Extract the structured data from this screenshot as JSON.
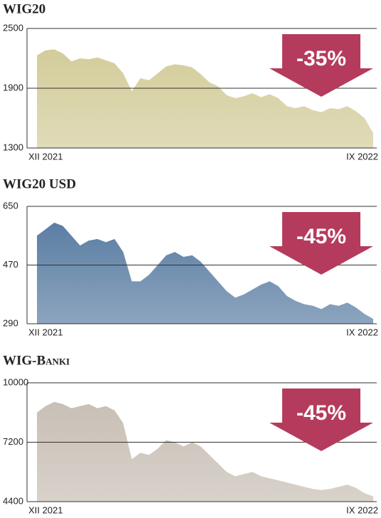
{
  "chart_data": [
    {
      "type": "area",
      "title": "WIG20",
      "annotation": "-35%",
      "color": "#d3cc9a",
      "categories": [
        "XII 2021",
        null,
        null,
        null,
        null,
        null,
        null,
        null,
        null,
        null,
        null,
        null,
        null,
        null,
        null,
        null,
        null,
        null,
        null,
        null,
        null,
        null,
        null,
        null,
        null,
        null,
        null,
        null,
        null,
        null,
        null,
        null,
        null,
        null,
        null,
        null,
        null,
        null,
        null,
        "IX 2022"
      ],
      "values": [
        2230,
        2280,
        2290,
        2250,
        2170,
        2200,
        2190,
        2210,
        2180,
        2150,
        2050,
        1870,
        2000,
        1980,
        2050,
        2120,
        2140,
        2130,
        2110,
        2040,
        1960,
        1920,
        1830,
        1800,
        1820,
        1850,
        1810,
        1840,
        1800,
        1720,
        1700,
        1720,
        1680,
        1660,
        1700,
        1690,
        1720,
        1670,
        1600,
        1450
      ],
      "ylim": [
        1300,
        2500
      ],
      "yticks": [
        1300,
        1900,
        2500
      ]
    },
    {
      "type": "area",
      "title": "WIG20 USD",
      "annotation": "-45%",
      "color": "#5b7ea3",
      "categories": [
        "XII 2021",
        null,
        null,
        null,
        null,
        null,
        null,
        null,
        null,
        null,
        null,
        null,
        null,
        null,
        null,
        null,
        null,
        null,
        null,
        null,
        null,
        null,
        null,
        null,
        null,
        null,
        null,
        null,
        null,
        null,
        null,
        null,
        null,
        null,
        null,
        null,
        null,
        null,
        null,
        "IX 2022"
      ],
      "values": [
        560,
        580,
        600,
        590,
        560,
        530,
        545,
        550,
        540,
        550,
        510,
        420,
        420,
        440,
        470,
        500,
        510,
        495,
        500,
        480,
        450,
        420,
        390,
        370,
        380,
        395,
        410,
        420,
        405,
        375,
        360,
        350,
        345,
        335,
        350,
        345,
        355,
        340,
        320,
        305
      ],
      "ylim": [
        290,
        650
      ],
      "yticks": [
        290,
        470,
        650
      ]
    },
    {
      "type": "area",
      "title": "WIG-Banki",
      "annotation": "-45%",
      "color": "#c8bfb5",
      "categories": [
        "XII 2021",
        null,
        null,
        null,
        null,
        null,
        null,
        null,
        null,
        null,
        null,
        null,
        null,
        null,
        null,
        null,
        null,
        null,
        null,
        null,
        null,
        null,
        null,
        null,
        null,
        null,
        null,
        null,
        null,
        null,
        null,
        null,
        null,
        null,
        null,
        null,
        null,
        null,
        null,
        "IX 2022"
      ],
      "values": [
        8600,
        8900,
        9100,
        9000,
        8800,
        8900,
        9000,
        8800,
        8900,
        8700,
        8100,
        6400,
        6700,
        6600,
        6900,
        7300,
        7200,
        7000,
        7200,
        7000,
        6600,
        6200,
        5800,
        5600,
        5700,
        5800,
        5600,
        5500,
        5400,
        5300,
        5200,
        5100,
        5000,
        4950,
        5000,
        5100,
        5200,
        5050,
        4800,
        4650
      ],
      "ylim": [
        4400,
        10000
      ],
      "yticks": [
        4400,
        7200,
        10000
      ]
    }
  ]
}
